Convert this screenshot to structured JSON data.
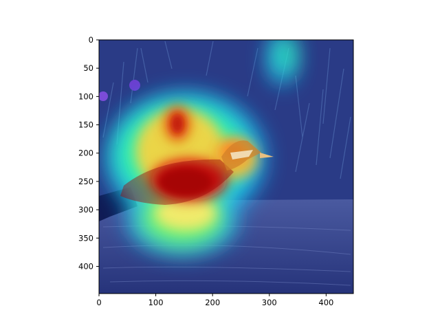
{
  "chart_data": {
    "type": "heatmap",
    "title": "",
    "xlabel": "",
    "ylabel": "",
    "xlim": [
      0,
      448
    ],
    "ylim": [
      448,
      0
    ],
    "xticks": [
      0,
      100,
      200,
      300,
      400
    ],
    "yticks": [
      0,
      50,
      100,
      150,
      200,
      250,
      300,
      350,
      400
    ],
    "colormap": "jet",
    "grid": false,
    "legend": "none",
    "hotspots": [
      {
        "region": "bird body",
        "x": 140,
        "y": 255,
        "intensity": 1.0
      },
      {
        "region": "upper vegetation",
        "x": 145,
        "y": 160,
        "intensity": 0.8
      },
      {
        "region": "bird head",
        "x": 245,
        "y": 215,
        "intensity": 0.75
      },
      {
        "region": "log below bird",
        "x": 220,
        "y": 335,
        "intensity": 0.55
      },
      {
        "region": "top right plant",
        "x": 325,
        "y": 30,
        "intensity": 0.5
      }
    ],
    "colors": {
      "background_dark": "#1c2a78",
      "hot": "#b00000",
      "warm": "#ffd23c",
      "mid": "#39ff9c",
      "cool": "#1ac8ff"
    }
  }
}
